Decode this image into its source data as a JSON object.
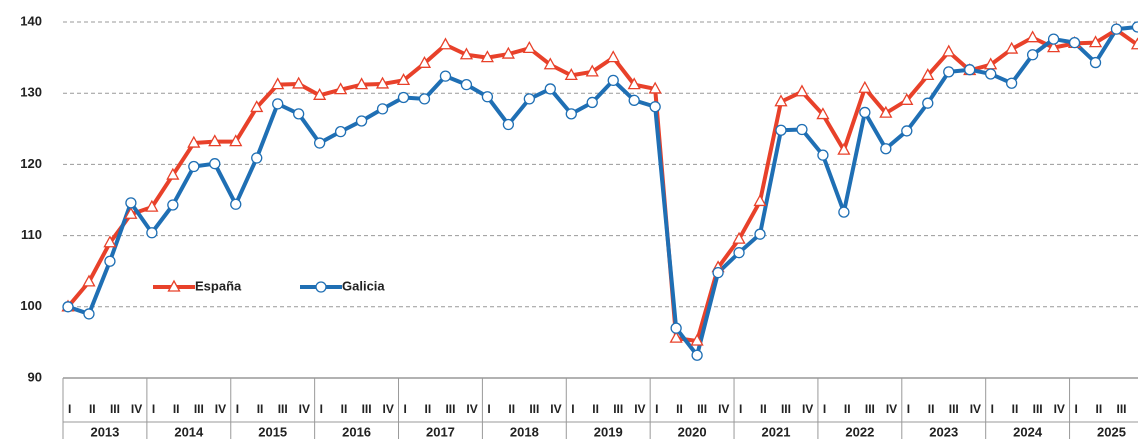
{
  "chart_data": {
    "type": "line",
    "categories": [
      "I",
      "II",
      "III",
      "IV",
      "I",
      "II",
      "III",
      "IV",
      "I",
      "II",
      "III",
      "IV",
      "I",
      "II",
      "III",
      "IV",
      "I",
      "II",
      "III",
      "IV",
      "I",
      "II",
      "III",
      "IV",
      "I",
      "II",
      "III",
      "IV",
      "I",
      "II",
      "III",
      "IV",
      "I",
      "II",
      "III",
      "IV",
      "I",
      "II",
      "III",
      "IV",
      "I",
      "II",
      "III",
      "IV",
      "I",
      "II",
      "III",
      "IV",
      "I",
      "II",
      "III",
      "IV"
    ],
    "years": [
      "2013",
      "2014",
      "2015",
      "2016",
      "2017",
      "2018",
      "2019",
      "2020",
      "2021",
      "2022",
      "2023",
      "2024",
      "2025"
    ],
    "series": [
      {
        "name": "España",
        "color": "#e8412a",
        "marker": "triangle",
        "values": [
          100,
          103.5,
          109,
          113,
          114,
          118.5,
          123,
          123.2,
          123.2,
          128,
          131.2,
          131.3,
          129.7,
          130.5,
          131.2,
          131.3,
          131.8,
          134.2,
          136.8,
          135.4,
          135,
          135.5,
          136.3,
          134,
          132.5,
          133,
          135,
          131.2,
          130.6,
          95.6,
          95.2,
          105.5,
          109.5,
          114.8,
          128.8,
          130.2,
          127,
          122,
          130.7,
          127.2,
          129,
          132.5,
          135.8,
          133.2,
          134,
          136.2,
          137.8,
          136.4,
          137,
          137.1,
          138.9,
          136.8
        ]
      },
      {
        "name": "Galicia",
        "color": "#1f6fb4",
        "marker": "circle",
        "values": [
          100,
          99,
          106.4,
          114.6,
          110.4,
          114.3,
          119.7,
          120.1,
          114.4,
          120.9,
          128.5,
          127.1,
          123,
          124.6,
          126.1,
          127.8,
          129.4,
          129.2,
          132.4,
          131.2,
          129.5,
          125.6,
          129.2,
          130.6,
          127.1,
          128.7,
          131.8,
          129,
          128.1,
          97,
          93.2,
          104.8,
          107.6,
          110.2,
          124.8,
          124.9,
          121.3,
          113.3,
          127.3,
          122.2,
          124.7,
          128.6,
          133,
          133.3,
          132.7,
          131.4,
          135.4,
          137.6,
          137.1,
          134.3,
          139,
          139.3
        ]
      }
    ],
    "ylim": [
      90,
      140
    ],
    "yticks": [
      90,
      100,
      110,
      120,
      130,
      140
    ],
    "grid": true,
    "legend": "center-left"
  }
}
